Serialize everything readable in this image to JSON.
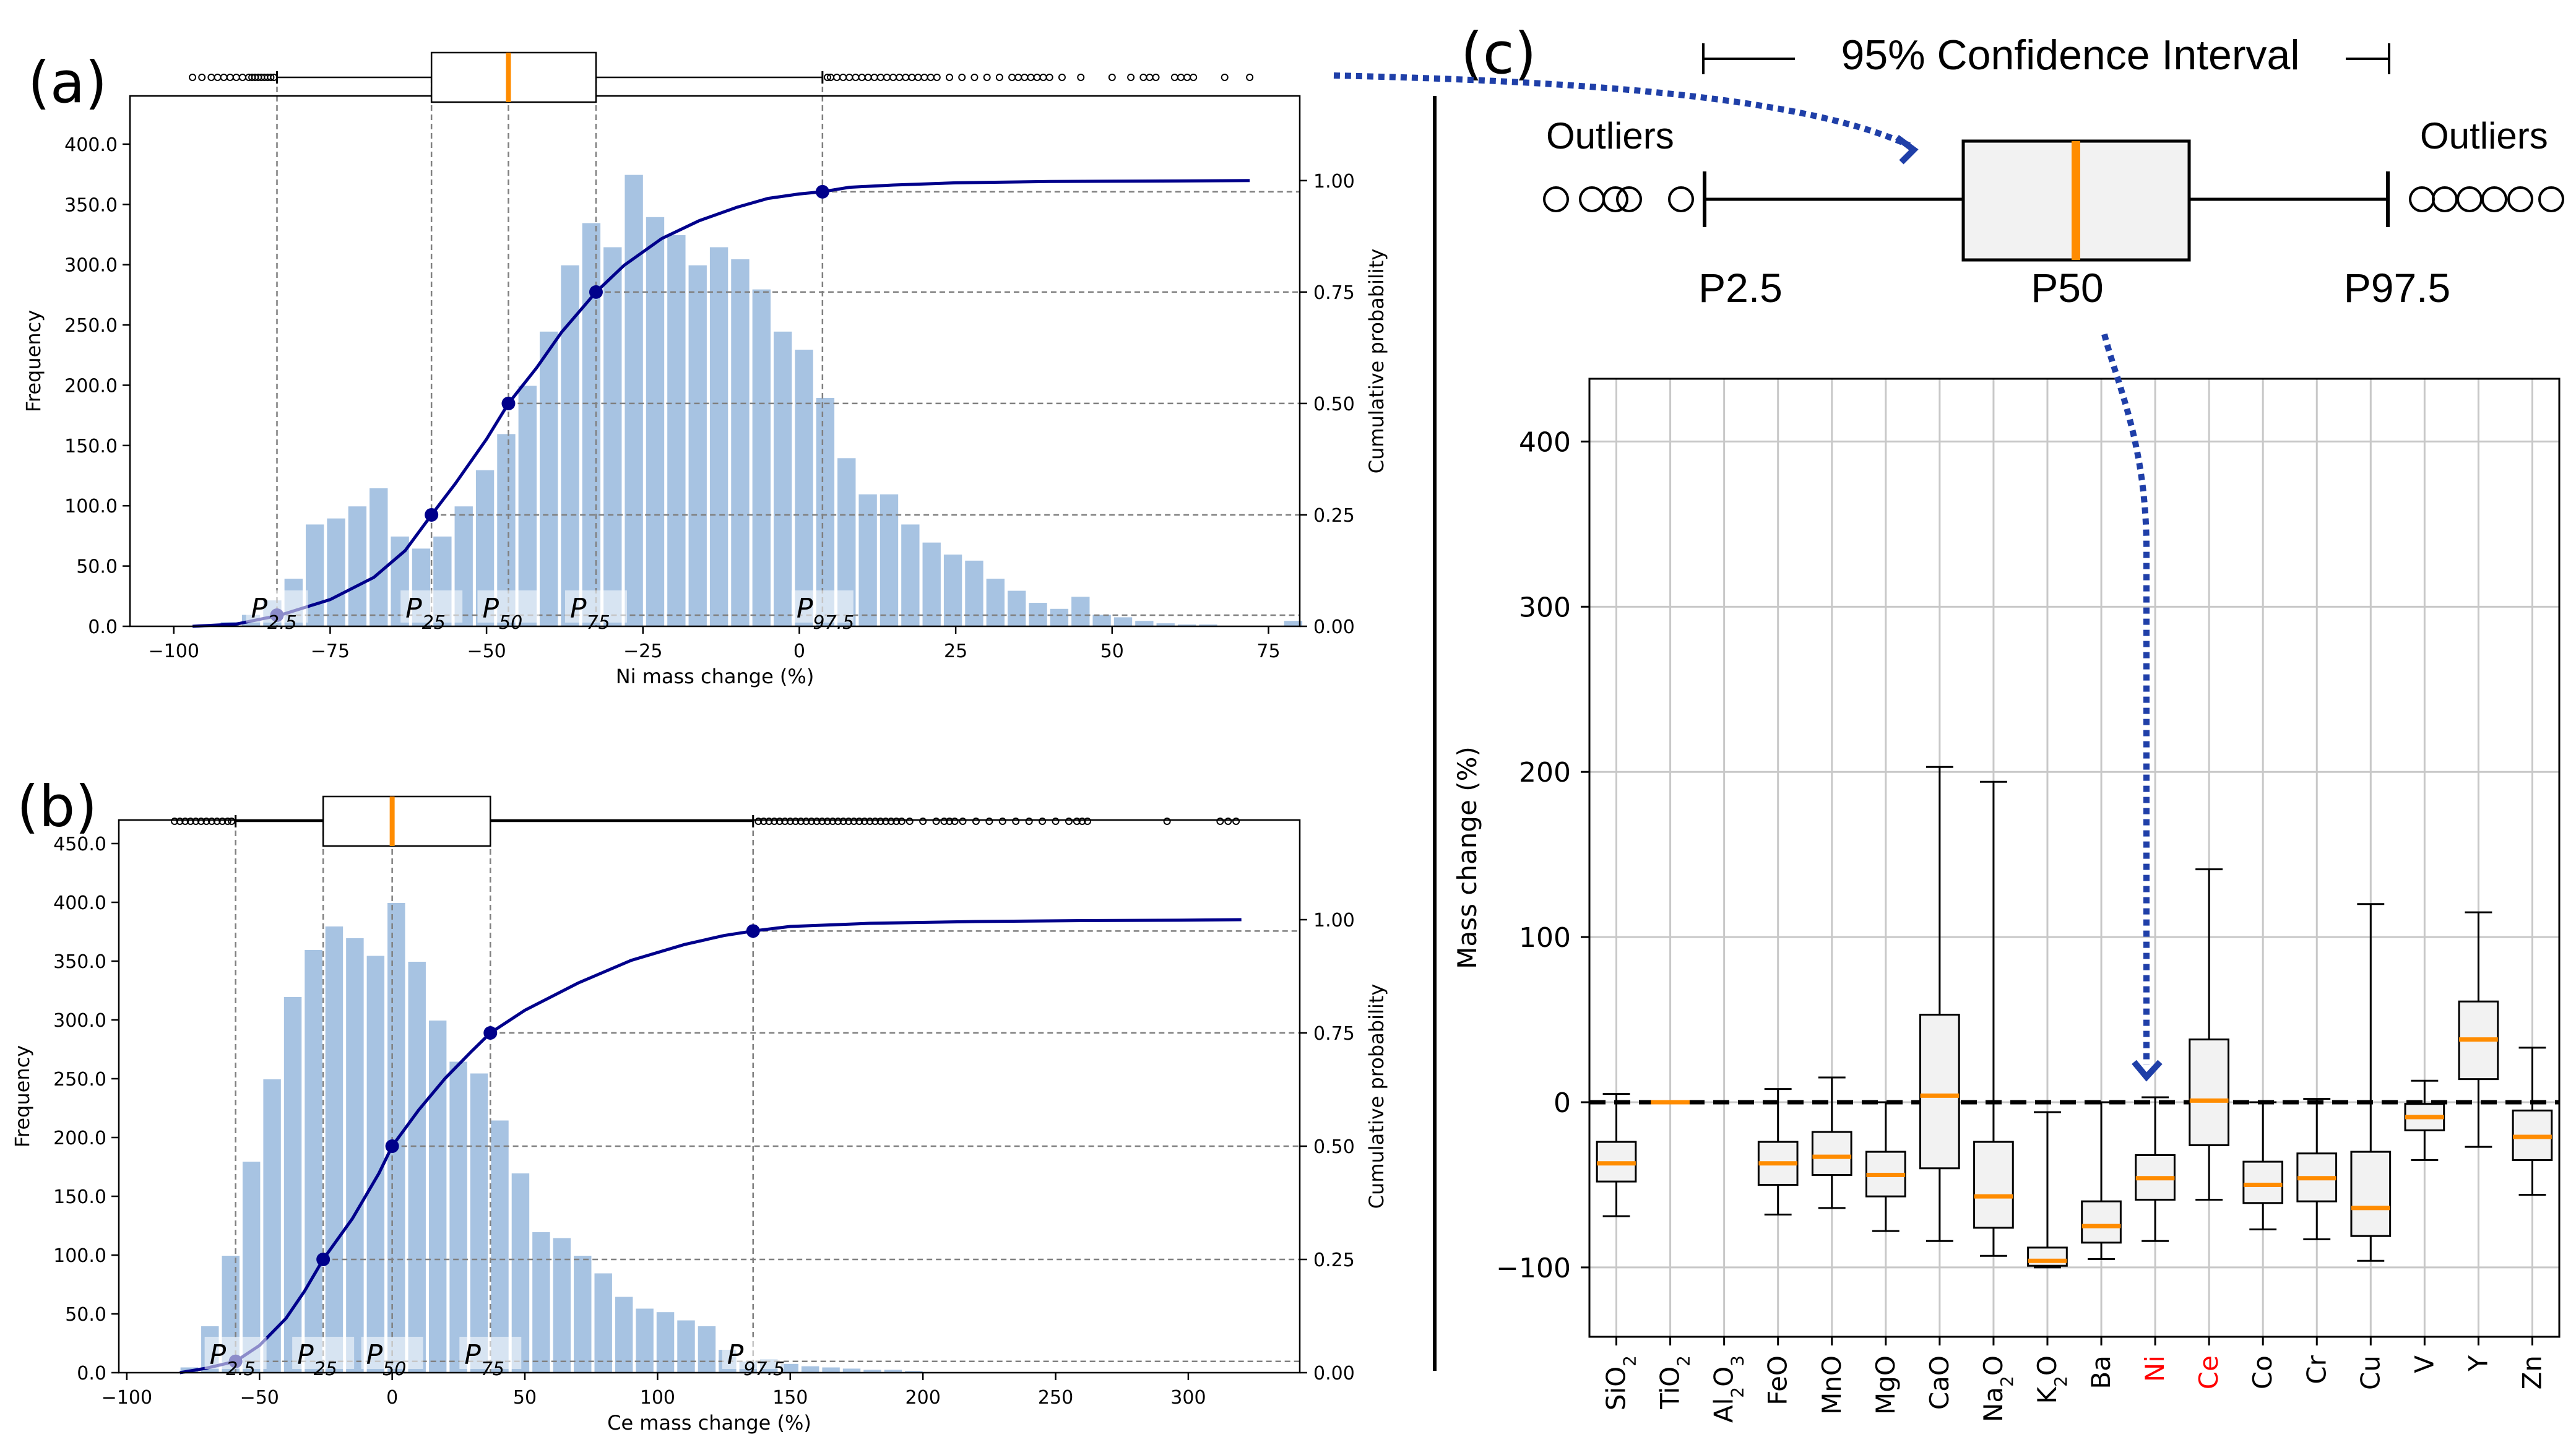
{
  "figure": {
    "colors": {
      "bar": "#a7c3e2",
      "cdf": "#00008b",
      "median": "#ff8c00",
      "guide": "#808080",
      "arrow": "#1f3fa8",
      "grid": "#c8c8c8",
      "highlight_label": "#ff0000"
    }
  },
  "chart_data": [
    {
      "panel_label": "(a)",
      "type": "bar",
      "title": "",
      "xlabel": "Ni mass change (%)",
      "ylabel": "Frequency",
      "y2label": "Cumulative probability",
      "xlim": [
        -107,
        80
      ],
      "ylim": [
        0,
        440
      ],
      "y2lim": [
        0,
        1.19
      ],
      "xticks": [
        -100,
        -75,
        -50,
        -25,
        0,
        25,
        50,
        75
      ],
      "xtick_labels": [
        "−100",
        "−75",
        "−50",
        "−25",
        "0",
        "25",
        "50",
        "75"
      ],
      "yticks": [
        0,
        50,
        100,
        150,
        200,
        250,
        300,
        350,
        400
      ],
      "ytick_labels": [
        "0.0",
        "50.0",
        "100.0",
        "150.0",
        "200.0",
        "250.0",
        "300.0",
        "350.0",
        "400.0"
      ],
      "y2ticks": [
        0,
        0.25,
        0.5,
        0.75,
        1.0
      ],
      "y2tick_labels": [
        "0.00",
        "0.25",
        "0.50",
        "0.75",
        "1.00"
      ],
      "bin_start": -96,
      "bin_width": 3.4,
      "values": [
        2,
        4,
        10,
        22,
        40,
        85,
        90,
        100,
        115,
        75,
        65,
        75,
        100,
        130,
        160,
        200,
        245,
        300,
        335,
        315,
        375,
        340,
        325,
        300,
        315,
        305,
        280,
        245,
        230,
        190,
        140,
        110,
        110,
        85,
        70,
        60,
        55,
        40,
        30,
        20,
        15,
        25,
        10,
        8,
        5,
        3,
        2,
        2,
        1,
        1,
        1,
        5
      ],
      "cdf_x": [
        -97,
        -90,
        -83,
        -75,
        -68,
        -63,
        -58.8,
        -55,
        -50,
        -46.5,
        -42,
        -38,
        -32.5,
        -28,
        -22,
        -16,
        -10,
        -5,
        0,
        3.7,
        8,
        15,
        25,
        40,
        55,
        72
      ],
      "cdf_y": [
        0,
        0.005,
        0.025,
        0.06,
        0.11,
        0.17,
        0.25,
        0.32,
        0.42,
        0.5,
        0.58,
        0.66,
        0.75,
        0.81,
        0.87,
        0.91,
        0.94,
        0.96,
        0.97,
        0.975,
        0.985,
        0.99,
        0.995,
        0.998,
        0.999,
        1.0
      ],
      "percentiles": [
        {
          "label": "P",
          "sub": "2.5",
          "x": -83.5,
          "p": 0.025
        },
        {
          "label": "P",
          "sub": "25",
          "x": -58.8,
          "p": 0.25
        },
        {
          "label": "P",
          "sub": "50",
          "x": -46.5,
          "p": 0.5
        },
        {
          "label": "P",
          "sub": "75",
          "x": -32.5,
          "p": 0.75
        },
        {
          "label": "P",
          "sub": "97.5",
          "x": 3.7,
          "p": 0.975
        }
      ],
      "boxplot": {
        "whisker_low": -83.5,
        "q1": -58.8,
        "median": -46.5,
        "q3": -32.5,
        "whisker_high": 3.7,
        "outliers": [
          -97,
          -95.5,
          -94,
          -93,
          -92,
          -91,
          -90,
          -89,
          -88,
          -87.5,
          -87,
          -86.5,
          -86,
          -85.5,
          -85,
          -84.5,
          -84,
          4.5,
          5,
          6,
          7,
          8,
          9,
          10,
          11,
          12,
          13,
          14,
          15,
          16,
          17,
          18,
          19,
          20,
          21,
          22,
          24,
          26,
          28,
          30,
          32,
          34,
          35,
          36,
          37,
          38,
          39,
          40,
          42,
          45,
          50,
          53,
          55,
          56,
          57,
          60,
          61,
          62,
          63,
          68,
          72
        ]
      }
    },
    {
      "panel_label": "(b)",
      "type": "bar",
      "title": "",
      "xlabel": "Ce mass change (%)",
      "ylabel": "Frequency",
      "y2label": "Cumulative probability",
      "xlim": [
        -103,
        342
      ],
      "ylim": [
        0,
        470
      ],
      "y2lim": [
        0,
        1.22
      ],
      "xticks": [
        -100,
        -50,
        0,
        50,
        100,
        150,
        200,
        250,
        300
      ],
      "xtick_labels": [
        "−100",
        "−50",
        "0",
        "50",
        "100",
        "150",
        "200",
        "250",
        "300"
      ],
      "yticks": [
        0,
        50,
        100,
        150,
        200,
        250,
        300,
        350,
        400,
        450
      ],
      "ytick_labels": [
        "0.0",
        "50.0",
        "100.0",
        "150.0",
        "200.0",
        "250.0",
        "300.0",
        "350.0",
        "400.0",
        "450.0"
      ],
      "y2ticks": [
        0,
        0.25,
        0.5,
        0.75,
        1.0
      ],
      "y2tick_labels": [
        "0.00",
        "0.25",
        "0.50",
        "0.75",
        "1.00"
      ],
      "bin_start": -80,
      "bin_width": 7.8,
      "values": [
        5,
        40,
        100,
        180,
        250,
        320,
        360,
        380,
        370,
        355,
        400,
        350,
        300,
        265,
        255,
        215,
        170,
        120,
        115,
        100,
        85,
        65,
        55,
        52,
        45,
        40,
        20,
        10,
        12,
        8,
        6,
        5,
        4,
        3,
        3,
        2,
        1,
        1,
        1,
        1,
        1,
        0,
        0,
        0,
        0,
        1,
        1,
        0,
        0,
        0,
        0,
        1
      ],
      "cdf_x": [
        -80,
        -70,
        -59,
        -50,
        -40,
        -33,
        -26,
        -15,
        -5,
        0,
        10,
        20,
        30,
        37,
        50,
        70,
        90,
        110,
        125,
        136,
        150,
        180,
        220,
        260,
        300,
        320
      ],
      "cdf_y": [
        0,
        0.01,
        0.025,
        0.06,
        0.12,
        0.18,
        0.25,
        0.34,
        0.44,
        0.5,
        0.58,
        0.65,
        0.71,
        0.75,
        0.8,
        0.86,
        0.91,
        0.945,
        0.965,
        0.975,
        0.985,
        0.992,
        0.996,
        0.998,
        0.999,
        1.0
      ],
      "percentiles": [
        {
          "label": "P",
          "sub": "2.5",
          "x": -59,
          "p": 0.025
        },
        {
          "label": "P",
          "sub": "25",
          "x": -26,
          "p": 0.25
        },
        {
          "label": "P",
          "sub": "50",
          "x": 0,
          "p": 0.5
        },
        {
          "label": "P",
          "sub": "75",
          "x": 37,
          "p": 0.75
        },
        {
          "label": "P",
          "sub": "97.5",
          "x": 136,
          "p": 0.975
        }
      ],
      "boxplot": {
        "whisker_low": -59,
        "q1": -26,
        "median": 0,
        "q3": 37,
        "whisker_high": 136,
        "outliers": [
          -82,
          -80,
          -78,
          -76,
          -74,
          -72,
          -70,
          -68,
          -66,
          -64,
          -62,
          -60.5,
          138,
          140,
          142,
          144,
          146,
          148,
          150,
          152,
          154,
          156,
          158,
          160,
          162,
          164,
          166,
          168,
          170,
          172,
          174,
          176,
          178,
          180,
          182,
          184,
          186,
          188,
          190,
          192,
          195,
          200,
          205,
          208,
          210,
          212,
          215,
          220,
          225,
          230,
          235,
          240,
          245,
          250,
          255,
          258,
          260,
          262,
          292,
          312,
          315,
          318
        ]
      }
    },
    {
      "panel_label": "(c)",
      "type": "boxplot",
      "title": "",
      "xlabel": "",
      "ylabel": "Mass change (%)",
      "ylim": [
        -142,
        438
      ],
      "yticks": [
        -100,
        0,
        100,
        200,
        300,
        400
      ],
      "ytick_labels": [
        "−100",
        "0",
        "100",
        "200",
        "300",
        "400"
      ],
      "categories": [
        {
          "name": "SiO2",
          "base": "SiO",
          "sub": "2",
          "highlight": false,
          "wl": -69,
          "q1": -48,
          "med": -37,
          "q3": -24,
          "wh": 5
        },
        {
          "name": "TiO2",
          "base": "TiO",
          "sub": "2",
          "highlight": false,
          "wl": 0,
          "q1": 0,
          "med": 0,
          "q3": 0,
          "wh": 0
        },
        {
          "name": "Al2O3",
          "base": "Al",
          "sub": "2",
          "base2": "O",
          "sub2": "3",
          "highlight": false,
          "empty": true
        },
        {
          "name": "FeO",
          "base": "FeO",
          "highlight": false,
          "wl": -68,
          "q1": -50,
          "med": -37,
          "q3": -24,
          "wh": 8
        },
        {
          "name": "MnO",
          "base": "MnO",
          "highlight": false,
          "wl": -64,
          "q1": -44,
          "med": -33,
          "q3": -18,
          "wh": 15
        },
        {
          "name": "MgO",
          "base": "MgO",
          "highlight": false,
          "wl": -78,
          "q1": -57,
          "med": -44,
          "q3": -30,
          "wh": 0
        },
        {
          "name": "CaO",
          "base": "CaO",
          "highlight": false,
          "wl": -84,
          "q1": -40,
          "med": 4,
          "q3": 53,
          "wh": 203
        },
        {
          "name": "Na2O",
          "base": "Na",
          "sub": "2",
          "base2": "O",
          "highlight": false,
          "wl": -93,
          "q1": -76,
          "med": -57,
          "q3": -24,
          "wh": 194
        },
        {
          "name": "K2O",
          "base": "K",
          "sub": "2",
          "base2": "O",
          "highlight": false,
          "wl": -100,
          "q1": -99,
          "med": -96,
          "q3": -88,
          "wh": -6
        },
        {
          "name": "Ba",
          "base": "Ba",
          "highlight": false,
          "wl": -95,
          "q1": -85,
          "med": -75,
          "q3": -60,
          "wh": 0
        },
        {
          "name": "Ni",
          "base": "Ni",
          "highlight": true,
          "wl": -84,
          "q1": -59,
          "med": -46,
          "q3": -32,
          "wh": 3
        },
        {
          "name": "Ce",
          "base": "Ce",
          "highlight": true,
          "wl": -59,
          "q1": -26,
          "med": 1,
          "q3": 38,
          "wh": 141
        },
        {
          "name": "Co",
          "base": "Co",
          "highlight": false,
          "wl": -77,
          "q1": -61,
          "med": -50,
          "q3": -36,
          "wh": 0
        },
        {
          "name": "Cr",
          "base": "Cr",
          "highlight": false,
          "wl": -83,
          "q1": -60,
          "med": -46,
          "q3": -31,
          "wh": 2
        },
        {
          "name": "Cu",
          "base": "Cu",
          "highlight": false,
          "wl": -96,
          "q1": -81,
          "med": -64,
          "q3": -30,
          "wh": 120
        },
        {
          "name": "V",
          "base": "V",
          "highlight": false,
          "wl": -35,
          "q1": -17,
          "med": -9,
          "q3": -1,
          "wh": 13
        },
        {
          "name": "Y",
          "base": "Y",
          "highlight": false,
          "wl": -27,
          "q1": 14,
          "med": 38,
          "q3": 61,
          "wh": 115
        },
        {
          "name": "Zn",
          "base": "Zn",
          "highlight": false,
          "wl": -56,
          "q1": -35,
          "med": -21,
          "q3": -5,
          "wh": 33
        }
      ],
      "legend": {
        "ci_label": "95% Confidence Interval",
        "outliers_label": "Outliers",
        "p_low": "P2.5",
        "p_mid": "P50",
        "p_high": "P97.5"
      }
    }
  ]
}
